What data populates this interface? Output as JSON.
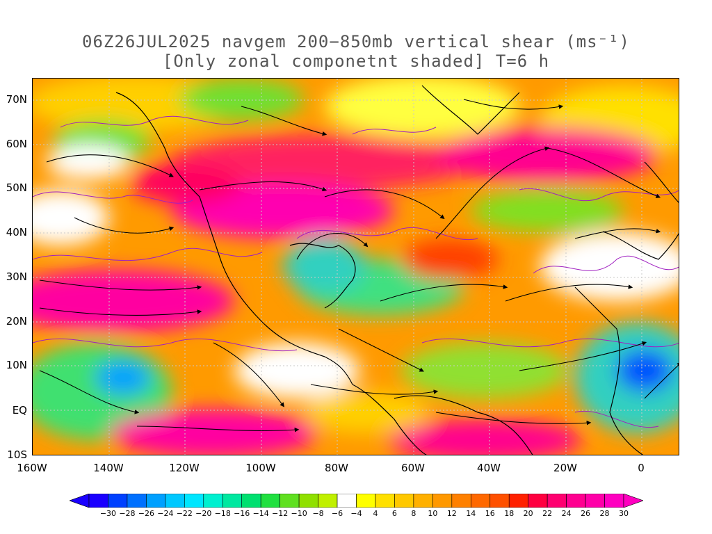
{
  "title": {
    "line1": "06Z26JUL2025 navgem 200−850mb vertical shear (ms⁻¹)",
    "line2": "[Only zonal componetnt shaded] T=6 h"
  },
  "axes": {
    "lat_labels": [
      "70N",
      "60N",
      "50N",
      "40N",
      "30N",
      "20N",
      "10N",
      "EQ",
      "10S"
    ],
    "lat_values": [
      70,
      60,
      50,
      40,
      30,
      20,
      10,
      0,
      -10
    ],
    "lon_labels": [
      "160W",
      "140W",
      "120W",
      "100W",
      "80W",
      "60W",
      "40W",
      "20W",
      "0"
    ],
    "lon_values": [
      -160,
      -140,
      -120,
      -100,
      -80,
      -60,
      -40,
      -20,
      0
    ],
    "lon_range": [
      -160,
      10
    ],
    "lat_range": [
      -10,
      75
    ]
  },
  "colorbar": {
    "labels": [
      "−30",
      "−28",
      "−26",
      "−24",
      "−22",
      "−20",
      "−18",
      "−16",
      "−14",
      "−12",
      "−10",
      "−8",
      "−6",
      "−4",
      "4",
      "6",
      "8",
      "10",
      "12",
      "14",
      "16",
      "18",
      "20",
      "22",
      "24",
      "26",
      "28",
      "30"
    ],
    "colors": [
      "#1a00ff",
      "#0040ff",
      "#0070ff",
      "#00a0ff",
      "#00c8ff",
      "#00e6ff",
      "#00f0d0",
      "#00e8a0",
      "#00e070",
      "#20e040",
      "#60e020",
      "#90e000",
      "#c0f000",
      "#ffffff",
      "#ffff00",
      "#ffe000",
      "#ffc800",
      "#ffb000",
      "#ff9800",
      "#ff8000",
      "#ff6800",
      "#ff5000",
      "#ff2000",
      "#ff0040",
      "#ff0070",
      "#ff0090",
      "#ff00a8",
      "#ff00c0"
    ]
  }
}
